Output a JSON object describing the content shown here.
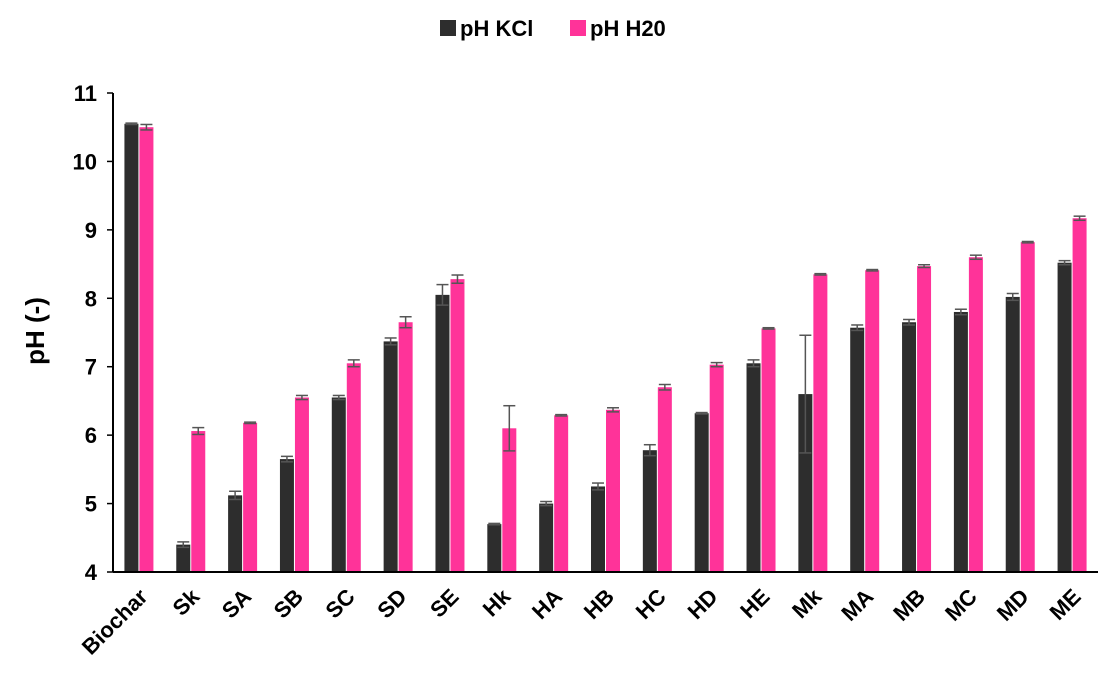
{
  "chart_data": {
    "type": "bar",
    "title": "",
    "xlabel": "",
    "ylabel": "pH (-)",
    "ylim": [
      4,
      11
    ],
    "yticks": [
      "4",
      "5",
      "6",
      "7",
      "8",
      "9",
      "10",
      "11"
    ],
    "grid": false,
    "legend_position": "top-center",
    "categories": [
      "Biochar",
      "Sk",
      "SA",
      "SB",
      "SC",
      "SD",
      "SE",
      "Hk",
      "HA",
      "HB",
      "HC",
      "HD",
      "HE",
      "Mk",
      "MA",
      "MB",
      "MC",
      "MD",
      "ME"
    ],
    "series": [
      {
        "name": "pH KCl",
        "color": "#2d2d2d",
        "values": [
          10.55,
          4.4,
          5.12,
          5.65,
          6.55,
          7.37,
          8.05,
          4.7,
          5.0,
          5.25,
          5.78,
          6.32,
          7.05,
          6.6,
          7.57,
          7.65,
          7.8,
          8.02,
          8.52
        ],
        "errors": [
          0.01,
          0.04,
          0.06,
          0.04,
          0.03,
          0.05,
          0.15,
          0.01,
          0.03,
          0.05,
          0.08,
          0.01,
          0.05,
          0.86,
          0.04,
          0.04,
          0.04,
          0.05,
          0.03
        ]
      },
      {
        "name": "pH H20",
        "color": "#ff3399",
        "values": [
          10.5,
          6.06,
          6.18,
          6.55,
          7.05,
          7.65,
          8.28,
          6.1,
          6.29,
          6.37,
          6.7,
          7.03,
          7.56,
          8.35,
          8.41,
          8.47,
          8.6,
          8.82,
          9.17
        ],
        "errors": [
          0.04,
          0.05,
          0.01,
          0.03,
          0.05,
          0.08,
          0.06,
          0.33,
          0.01,
          0.03,
          0.04,
          0.03,
          0.01,
          0.01,
          0.01,
          0.02,
          0.03,
          0.01,
          0.03
        ]
      }
    ]
  }
}
